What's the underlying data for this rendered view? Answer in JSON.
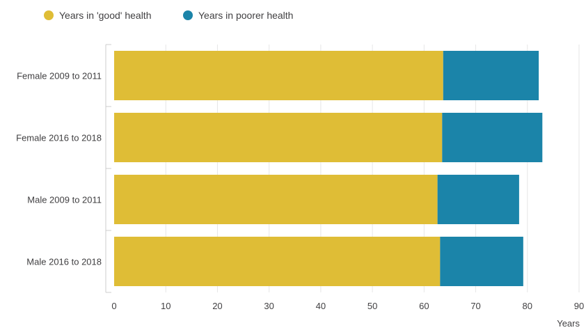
{
  "chart_data": {
    "type": "bar",
    "orientation": "horizontal",
    "stacked": true,
    "title": "",
    "xlabel": "Years",
    "ylabel": "",
    "categories": [
      "Female 2009 to 2011",
      "Female 2016 to 2018",
      "Male 2009 to 2011",
      "Male 2016 to 2018"
    ],
    "series": [
      {
        "name": "Years in 'good' health",
        "color": "#dfbd36",
        "values": [
          63.7,
          63.5,
          62.6,
          63.1
        ]
      },
      {
        "name": "Years in poorer health",
        "color": "#1b84a9",
        "values": [
          18.5,
          19.4,
          15.8,
          16.1
        ]
      }
    ],
    "xlim": [
      0,
      90
    ],
    "xticks": [
      "0",
      "10",
      "20",
      "30",
      "40",
      "50",
      "60",
      "70",
      "80",
      "90"
    ],
    "grid": true,
    "legend_position": "top-left"
  }
}
